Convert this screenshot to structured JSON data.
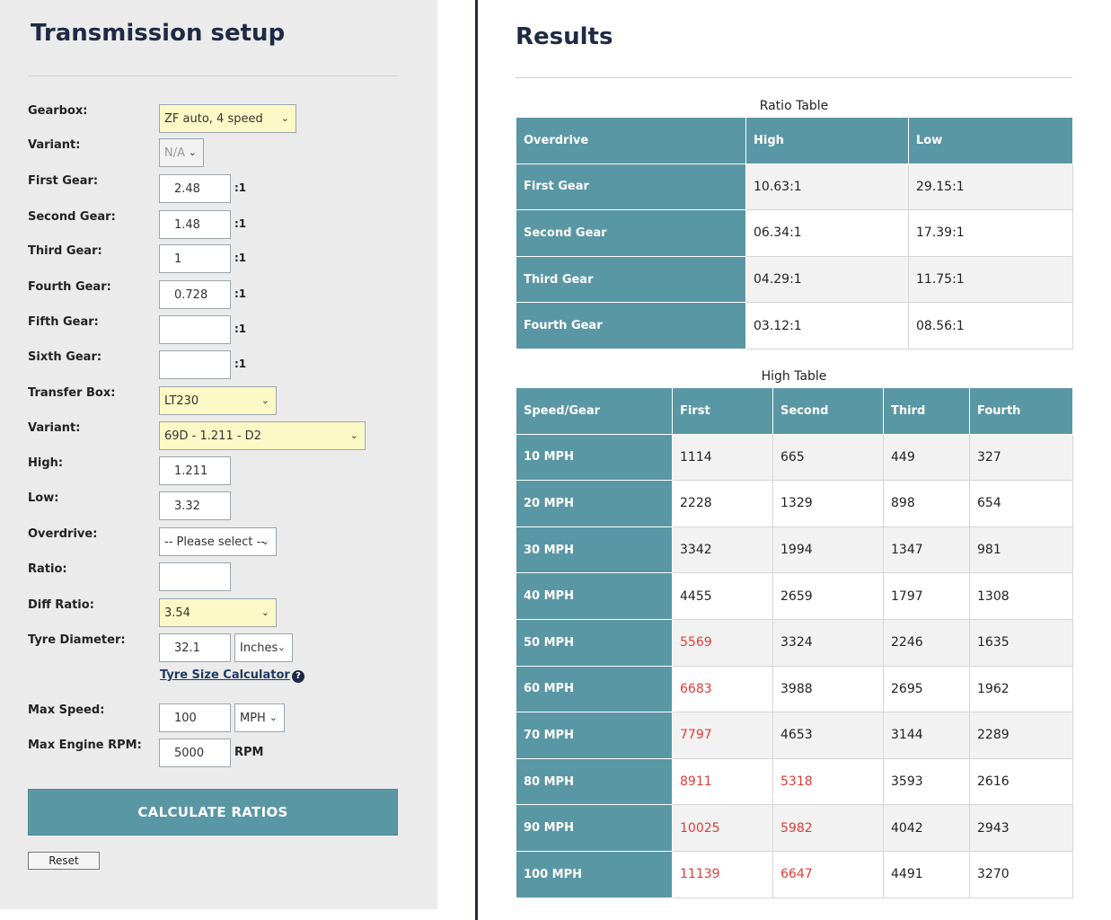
{
  "setup": {
    "title": "Transmission setup",
    "fields": {
      "gearbox": {
        "label": "Gearbox:",
        "value": "ZF auto, 4 speed"
      },
      "variant": {
        "label": "Variant:",
        "value": "N/A"
      },
      "first_gear": {
        "label": "First Gear:",
        "value": "2.48",
        "unit": ":1"
      },
      "second_gear": {
        "label": "Second Gear:",
        "value": "1.48",
        "unit": ":1"
      },
      "third_gear": {
        "label": "Third Gear:",
        "value": "1",
        "unit": ":1"
      },
      "fourth_gear": {
        "label": "Fourth Gear:",
        "value": "0.728",
        "unit": ":1"
      },
      "fifth_gear": {
        "label": "Fifth Gear:",
        "value": "",
        "unit": ":1"
      },
      "sixth_gear": {
        "label": "Sixth Gear:",
        "value": "",
        "unit": ":1"
      },
      "transfer_box": {
        "label": "Transfer Box:",
        "value": "LT230"
      },
      "transfer_variant": {
        "label": "Variant:",
        "value": "69D - 1.211 - D2"
      },
      "high": {
        "label": "High:",
        "value": "1.211"
      },
      "low": {
        "label": "Low:",
        "value": "3.32"
      },
      "overdrive": {
        "label": "Overdrive:",
        "value": "-- Please select --"
      },
      "ratio": {
        "label": "Ratio:",
        "value": ""
      },
      "diff_ratio": {
        "label": "Diff Ratio:",
        "value": "3.54"
      },
      "tyre_diameter": {
        "label": "Tyre Diameter:",
        "value": "32.1",
        "unit": "Inches"
      },
      "max_speed": {
        "label": "Max Speed:",
        "value": "100",
        "unit": "MPH"
      },
      "max_rpm": {
        "label": "Max Engine RPM:",
        "value": "5000",
        "unit": "RPM"
      }
    },
    "tyre_calc_link": "Tyre Size Calculator",
    "help_icon": "?",
    "calculate_label": "CALCULATE RATIOS",
    "reset_label": "Reset",
    "chevron": "⌄"
  },
  "results": {
    "title": "Results",
    "ratio_table": {
      "caption": "Ratio Table",
      "headers": [
        "Overdrive",
        "High",
        "Low"
      ],
      "rows": [
        [
          "First Gear",
          "10.63:1",
          "29.15:1"
        ],
        [
          "Second Gear",
          "06.34:1",
          "17.39:1"
        ],
        [
          "Third Gear",
          "04.29:1",
          "11.75:1"
        ],
        [
          "Fourth Gear",
          "03.12:1",
          "08.56:1"
        ]
      ]
    },
    "high_table": {
      "caption": "High Table",
      "headers": [
        "Speed/Gear",
        "First",
        "Second",
        "Third",
        "Fourth"
      ],
      "rows": [
        [
          "10 MPH",
          "1114",
          "665",
          "449",
          "327"
        ],
        [
          "20 MPH",
          "2228",
          "1329",
          "898",
          "654"
        ],
        [
          "30 MPH",
          "3342",
          "1994",
          "1347",
          "981"
        ],
        [
          "40 MPH",
          "4455",
          "2659",
          "1797",
          "1308"
        ],
        [
          "50 MPH",
          "5569",
          "3324",
          "2246",
          "1635"
        ],
        [
          "60 MPH",
          "6683",
          "3988",
          "2695",
          "1962"
        ],
        [
          "70 MPH",
          "7797",
          "4653",
          "3144",
          "2289"
        ],
        [
          "80 MPH",
          "8911",
          "5318",
          "3593",
          "2616"
        ],
        [
          "90 MPH",
          "10025",
          "5982",
          "4042",
          "2943"
        ],
        [
          "100 MPH",
          "11139",
          "6647",
          "4491",
          "3270"
        ]
      ],
      "over_limit_color": "#e53935",
      "limit_rpm": 5000
    }
  }
}
